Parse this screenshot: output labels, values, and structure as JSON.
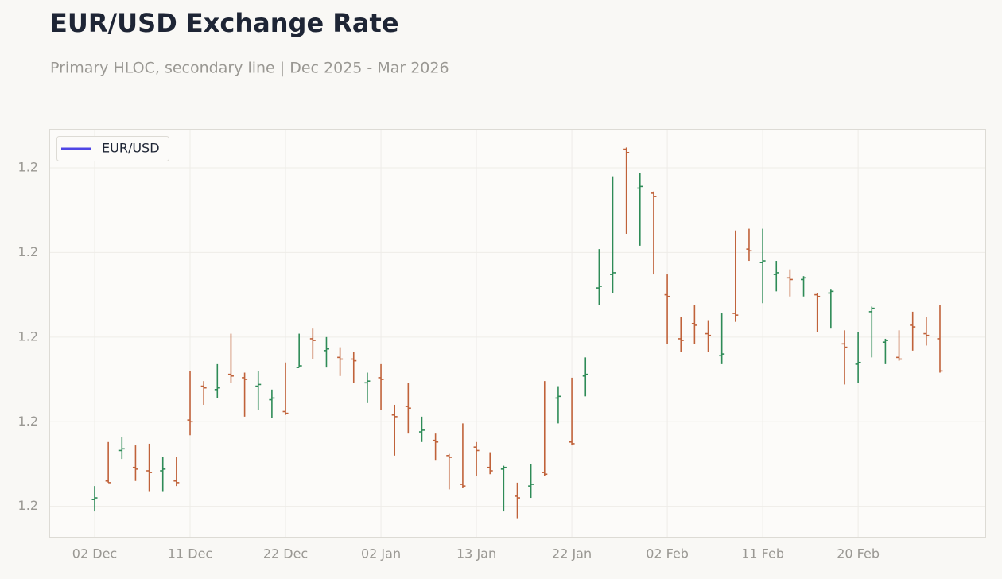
{
  "chart_data": {
    "type": "ohlc",
    "title": "EUR/USD Exchange Rate",
    "subtitle": "Primary HLOC, secondary line | Dec 2025 - Mar 2026",
    "categories": [
      "02 Dec",
      null,
      null,
      null,
      null,
      null,
      null,
      "11 Dec",
      null,
      null,
      null,
      null,
      null,
      null,
      "22 Dec",
      null,
      null,
      null,
      null,
      null,
      null,
      "02 Jan",
      null,
      null,
      null,
      null,
      null,
      null,
      "13 Jan",
      null,
      null,
      null,
      null,
      null,
      null,
      "22 Jan",
      null,
      null,
      null,
      null,
      null,
      null,
      "02 Feb",
      null,
      null,
      null,
      null,
      null,
      null,
      "11 Feb",
      null,
      null,
      null,
      null,
      null,
      null,
      "20 Feb",
      null,
      null,
      null,
      null,
      null,
      null
    ],
    "series": [
      {
        "name": "EUR/USD",
        "color": "#4f46e5",
        "open": [
          1.1554,
          1.1565,
          1.1583,
          1.1573,
          1.1571,
          1.1571,
          1.1565,
          1.1601,
          1.1621,
          1.1619,
          1.1628,
          1.1626,
          1.1621,
          1.1613,
          1.1606,
          1.1632,
          1.1649,
          1.1642,
          1.1638,
          1.1637,
          1.1623,
          1.1626,
          1.1604,
          1.1609,
          1.1594,
          1.1589,
          1.158,
          1.1563,
          1.1585,
          1.1573,
          1.1572,
          1.1556,
          1.1562,
          1.157,
          1.1614,
          1.1588,
          1.1627,
          1.1679,
          1.1687,
          1.1761,
          1.1738,
          1.1735,
          1.1675,
          1.1649,
          1.1658,
          1.1652,
          1.1639,
          1.1664,
          1.1702,
          1.1694,
          1.1687,
          1.1685,
          1.1684,
          1.1675,
          1.1676,
          1.1646,
          1.1634,
          1.1665,
          1.1647,
          1.1638,
          1.1657,
          1.1652,
          1.1649
        ],
        "high": [
          1.1562,
          1.1588,
          1.1591,
          1.1586,
          1.1587,
          1.1579,
          1.1579,
          1.163,
          1.1624,
          1.1634,
          1.1652,
          1.1629,
          1.163,
          1.1619,
          1.1635,
          1.1652,
          1.1655,
          1.165,
          1.1644,
          1.1641,
          1.1629,
          1.1634,
          1.161,
          1.1623,
          1.1603,
          1.1593,
          1.1581,
          1.1599,
          1.1588,
          1.1582,
          1.1574,
          1.1564,
          1.1575,
          1.1624,
          1.1621,
          1.1626,
          1.1638,
          1.1702,
          1.1745,
          1.1762,
          1.1747,
          1.1736,
          1.1687,
          1.1662,
          1.1669,
          1.166,
          1.1664,
          1.1713,
          1.1714,
          1.1714,
          1.1695,
          1.169,
          1.1686,
          1.1676,
          1.1678,
          1.1654,
          1.1653,
          1.1668,
          1.1649,
          1.1654,
          1.1665,
          1.1662,
          1.1669
        ],
        "low": [
          1.1547,
          1.1564,
          1.1578,
          1.1565,
          1.1559,
          1.1559,
          1.1562,
          1.1592,
          1.161,
          1.1614,
          1.1623,
          1.1603,
          1.1607,
          1.1602,
          1.1604,
          1.1632,
          1.1637,
          1.1632,
          1.1627,
          1.1623,
          1.1611,
          1.1607,
          1.158,
          1.1593,
          1.1588,
          1.1577,
          1.156,
          1.1561,
          1.1568,
          1.1569,
          1.1547,
          1.1543,
          1.1555,
          1.1568,
          1.1599,
          1.1586,
          1.1615,
          1.1669,
          1.1676,
          1.1711,
          1.1704,
          1.1687,
          1.1646,
          1.1641,
          1.1646,
          1.1641,
          1.1634,
          1.1659,
          1.1695,
          1.167,
          1.1677,
          1.1674,
          1.1674,
          1.1653,
          1.1655,
          1.1622,
          1.1623,
          1.1638,
          1.1634,
          1.1636,
          1.1642,
          1.1645,
          1.1629
        ],
        "close": [
          1.1555,
          1.1564,
          1.1584,
          1.1572,
          1.157,
          1.1572,
          1.1564,
          1.16,
          1.162,
          1.162,
          1.1627,
          1.1625,
          1.1622,
          1.1614,
          1.1605,
          1.1633,
          1.1648,
          1.1643,
          1.1637,
          1.1636,
          1.1624,
          1.1625,
          1.1603,
          1.1608,
          1.1595,
          1.1588,
          1.1579,
          1.1562,
          1.1583,
          1.1571,
          1.1573,
          1.1555,
          1.1563,
          1.1569,
          1.1615,
          1.1587,
          1.1628,
          1.168,
          1.1688,
          1.1759,
          1.1739,
          1.1733,
          1.1674,
          1.1648,
          1.1657,
          1.1651,
          1.164,
          1.1663,
          1.1701,
          1.1695,
          1.1688,
          1.1684,
          1.1685,
          1.1674,
          1.1677,
          1.1644,
          1.1635,
          1.1667,
          1.1648,
          1.1637,
          1.1656,
          1.1651,
          1.163
        ]
      }
    ],
    "up_color": "#2e8b57",
    "down_color": "#c0623a",
    "ylim": [
      1.1532,
      1.1773
    ],
    "yticks": [
      {
        "value": 1.155,
        "label": "1.2"
      },
      {
        "value": 1.16,
        "label": "1.2"
      },
      {
        "value": 1.165,
        "label": "1.2"
      },
      {
        "value": 1.17,
        "label": "1.2"
      },
      {
        "value": 1.175,
        "label": "1.2"
      }
    ],
    "grid": true,
    "legend": "upper left"
  }
}
